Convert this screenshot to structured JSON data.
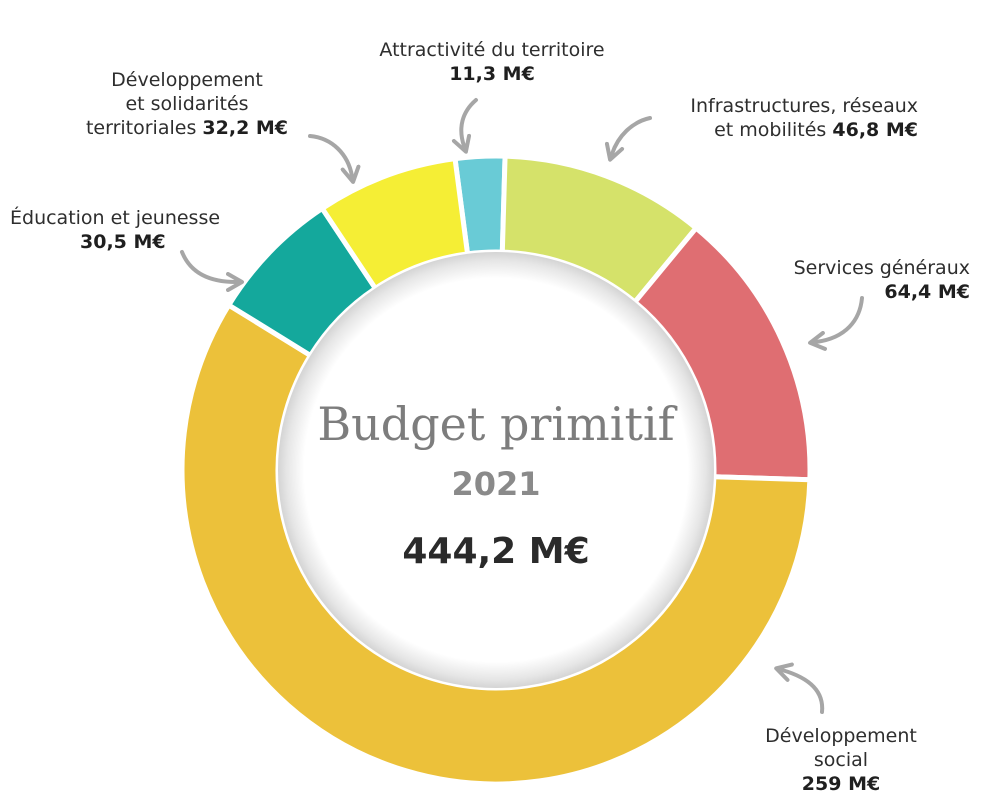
{
  "chart_data": {
    "type": "pie",
    "title": "Budget primitif",
    "subtitle": "2021",
    "total_label": "444,2 M€",
    "unit": "M€",
    "slices": [
      {
        "name": "Attractivité du territoire",
        "value": 11.3,
        "value_label": "11,3 M€",
        "color": "#69CBD6"
      },
      {
        "name": "Infrastructures, réseaux et mobilités",
        "value": 46.8,
        "value_label": "46,8 M€",
        "color": "#D5E26A"
      },
      {
        "name": "Services généraux",
        "value": 64.4,
        "value_label": "64,4 M€",
        "color": "#DF6E72"
      },
      {
        "name": "Développement social",
        "value": 259,
        "value_label": "259 M€",
        "color": "#ECC13A"
      },
      {
        "name": "Éducation et jeunesse",
        "value": 30.5,
        "value_label": "30,5 M€",
        "color": "#14A89C"
      },
      {
        "name": "Développement et solidarités territoriales",
        "value": 32.2,
        "value_label": "32,2 M€",
        "color": "#F5EE35"
      }
    ]
  },
  "labels": {
    "attractivite": {
      "l1": "Attractivité du territoire",
      "val": "11,3 M€"
    },
    "infrastructures": {
      "l1": "Infrastructures, réseaux",
      "l2": "et mobilités",
      "val": "46,8 M€"
    },
    "services": {
      "l1": "Services généraux",
      "val": "64,4 M€"
    },
    "social": {
      "l1": "Développement",
      "l2": "social",
      "val": "259 M€"
    },
    "education": {
      "l1": "Éducation et jeunesse",
      "val": "30,5 M€"
    },
    "solidarites": {
      "l1": "Développement",
      "l2": "et solidarités",
      "l3": "territoriales",
      "val": "32,2 M€"
    }
  },
  "colors": {
    "arrow": "#a6a6a6",
    "center_shadow": "#d9d9d9"
  }
}
